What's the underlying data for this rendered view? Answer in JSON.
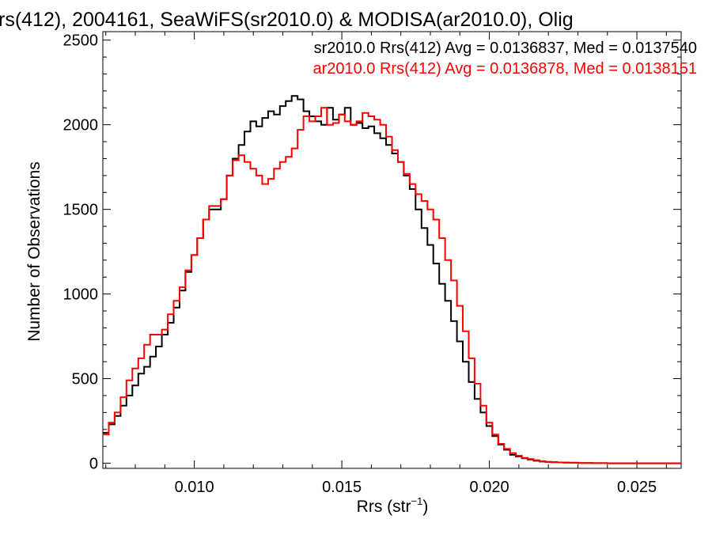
{
  "chart_data": {
    "type": "line",
    "title": "rs(412), 2004161, SeaWiFS(sr2010.0) & MODISA(ar2010.0), Olig",
    "xlabel": "Rrs (str",
    "xlabel_sup": "−1",
    "xlabel_close": ")",
    "ylabel": "Number of Observations",
    "xlim": [
      0.0069,
      0.0265
    ],
    "ylim": [
      -30,
      2550
    ],
    "x_ticks": [
      0.01,
      0.015,
      0.02,
      0.025
    ],
    "x_tick_labels": [
      "0.010",
      "0.015",
      "0.020",
      "0.025"
    ],
    "y_ticks": [
      0,
      500,
      1000,
      1500,
      2000,
      2500
    ],
    "y_tick_labels": [
      "0",
      "500",
      "1000",
      "1500",
      "2000",
      "2500"
    ],
    "step": true,
    "grid": false,
    "legend_position": "top-right",
    "series": [
      {
        "name": "sr2010.0 Rrs(412) Avg = 0.0136837, Med = 0.0137540",
        "color": "#000000",
        "x": [
          0.0069,
          0.0071,
          0.0073,
          0.0075,
          0.0077,
          0.0079,
          0.0081,
          0.0083,
          0.0085,
          0.0087,
          0.0089,
          0.0091,
          0.0093,
          0.0095,
          0.0097,
          0.0099,
          0.0101,
          0.0103,
          0.0105,
          0.0107,
          0.0109,
          0.0111,
          0.0113,
          0.0115,
          0.0117,
          0.0119,
          0.0121,
          0.0123,
          0.0125,
          0.0127,
          0.0129,
          0.0131,
          0.0133,
          0.0135,
          0.0137,
          0.0139,
          0.0141,
          0.0143,
          0.0145,
          0.0147,
          0.0149,
          0.0151,
          0.0153,
          0.0155,
          0.0157,
          0.0159,
          0.0161,
          0.0163,
          0.0165,
          0.0167,
          0.0169,
          0.0171,
          0.0173,
          0.0175,
          0.0177,
          0.0179,
          0.0181,
          0.0183,
          0.0185,
          0.0187,
          0.0189,
          0.0191,
          0.0193,
          0.0195,
          0.0197,
          0.0199,
          0.0201,
          0.0203,
          0.0205,
          0.0207,
          0.0209,
          0.0211,
          0.0213,
          0.0215,
          0.0217,
          0.0219,
          0.0221,
          0.0223,
          0.0225,
          0.0227,
          0.023,
          0.0235,
          0.024,
          0.0245,
          0.025,
          0.0255,
          0.026,
          0.0265
        ],
        "y": [
          180,
          230,
          280,
          340,
          400,
          460,
          530,
          570,
          630,
          690,
          760,
          830,
          920,
          1020,
          1130,
          1230,
          1330,
          1440,
          1500,
          1500,
          1560,
          1700,
          1800,
          1880,
          1960,
          2020,
          1990,
          2040,
          2080,
          2060,
          2110,
          2140,
          2170,
          2150,
          2080,
          2050,
          2020,
          2000,
          2100,
          2030,
          2060,
          2100,
          2000,
          2010,
          1980,
          1990,
          1950,
          1920,
          1880,
          1830,
          1780,
          1700,
          1620,
          1500,
          1390,
          1290,
          1180,
          1060,
          960,
          840,
          720,
          600,
          480,
          380,
          300,
          220,
          160,
          110,
          80,
          50,
          40,
          30,
          22,
          15,
          10,
          8,
          6,
          5,
          4,
          3,
          2,
          1,
          0,
          0,
          0,
          0,
          0,
          0
        ]
      },
      {
        "name": "ar2010.0 Rrs(412) Avg = 0.0136878, Med = 0.0138151",
        "color": "#ff0000",
        "x": [
          0.0069,
          0.0071,
          0.0073,
          0.0075,
          0.0077,
          0.0079,
          0.0081,
          0.0083,
          0.0085,
          0.0087,
          0.0089,
          0.0091,
          0.0093,
          0.0095,
          0.0097,
          0.0099,
          0.0101,
          0.0103,
          0.0105,
          0.0107,
          0.0109,
          0.0111,
          0.0113,
          0.0115,
          0.0117,
          0.0119,
          0.0121,
          0.0123,
          0.0125,
          0.0127,
          0.0129,
          0.0131,
          0.0133,
          0.0135,
          0.0137,
          0.0139,
          0.0141,
          0.0143,
          0.0145,
          0.0147,
          0.0149,
          0.0151,
          0.0153,
          0.0155,
          0.0157,
          0.0159,
          0.0161,
          0.0163,
          0.0165,
          0.0167,
          0.0169,
          0.0171,
          0.0173,
          0.0175,
          0.0177,
          0.0179,
          0.0181,
          0.0183,
          0.0185,
          0.0187,
          0.0189,
          0.0191,
          0.0193,
          0.0195,
          0.0197,
          0.0199,
          0.0201,
          0.0203,
          0.0205,
          0.0207,
          0.0209,
          0.0211,
          0.0213,
          0.0215,
          0.0217,
          0.0219,
          0.0221,
          0.0223,
          0.0225,
          0.0227,
          0.023,
          0.0235,
          0.024,
          0.0245,
          0.025,
          0.0255,
          0.026,
          0.0265
        ],
        "y": [
          170,
          240,
          300,
          390,
          490,
          560,
          620,
          700,
          760,
          760,
          790,
          880,
          960,
          1040,
          1140,
          1230,
          1330,
          1440,
          1520,
          1520,
          1560,
          1700,
          1790,
          1820,
          1780,
          1740,
          1700,
          1650,
          1680,
          1740,
          1780,
          1810,
          1860,
          1970,
          2050,
          2020,
          2050,
          2100,
          2000,
          2010,
          2060,
          2020,
          2000,
          2020,
          2070,
          2050,
          2030,
          2000,
          1930,
          1850,
          1780,
          1710,
          1650,
          1590,
          1550,
          1500,
          1440,
          1330,
          1200,
          1080,
          930,
          780,
          620,
          470,
          340,
          240,
          170,
          115,
          85,
          60,
          45,
          32,
          25,
          18,
          12,
          9,
          7,
          5,
          4,
          3,
          2,
          1,
          0,
          0,
          0,
          0,
          0,
          0
        ]
      }
    ]
  }
}
